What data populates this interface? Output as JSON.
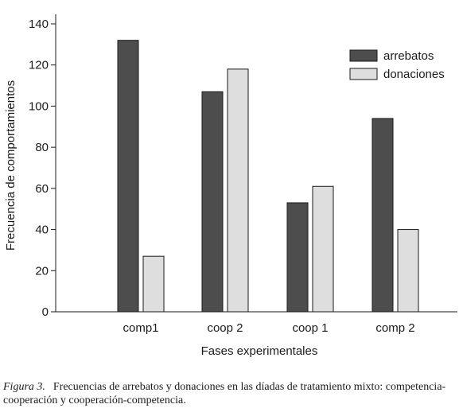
{
  "chart_data": {
    "type": "bar",
    "categories": [
      "comp1",
      "coop 2",
      "coop 1",
      "comp 2"
    ],
    "series": [
      {
        "name": "arrebatos",
        "values": [
          132,
          107,
          53,
          94
        ],
        "color": "#4d4d4d"
      },
      {
        "name": "donaciones",
        "values": [
          27,
          118,
          61,
          40
        ],
        "color": "#dedede"
      }
    ],
    "xlabel": "Fases experimentales",
    "ylabel": "Frecuencia de comportamientos",
    "ylim": [
      0,
      140
    ],
    "yticks": [
      0,
      20,
      40,
      60,
      80,
      100,
      120,
      140
    ],
    "grid": false,
    "legend_position": "top-right"
  },
  "caption": {
    "figure_label": "Figura 3.",
    "text": "Frecuencias de arrebatos y donaciones en las díadas de tratamiento mixto: competencia-cooperación y cooperación-competencia."
  }
}
